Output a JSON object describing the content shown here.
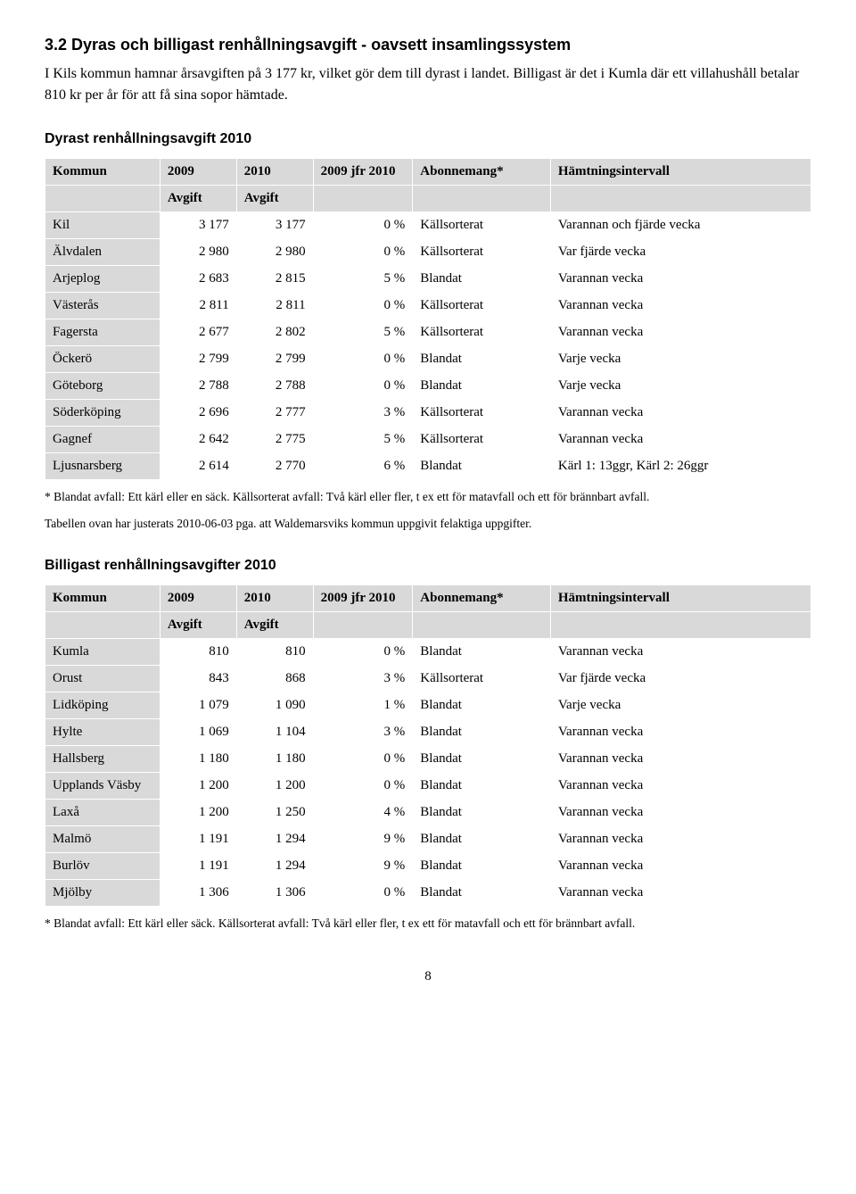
{
  "section": {
    "heading": "3.2 Dyras och billigast renhållningsavgift - oavsett insamlingssystem",
    "para1": "I Kils kommun hamnar årsavgiften på 3 177 kr, vilket gör dem till dyrast i landet. Billigast är det i Kumla där ett villahushåll betalar 810 kr per år för att få sina sopor hämtade."
  },
  "table1": {
    "title": "Dyrast renhållningsavgift 2010",
    "headers": {
      "c0": "Kommun",
      "c1": "2009",
      "c2": "2010",
      "c3": "2009 jfr 2010",
      "c4": "Abonnemang*",
      "c5": "Hämtningsintervall",
      "sub1": "Avgift",
      "sub2": "Avgift"
    },
    "rows": [
      {
        "k": "Kil",
        "a": "3 177",
        "b": "3 177",
        "p": "0 %",
        "ab": "Källsorterat",
        "h": "Varannan och fjärde vecka"
      },
      {
        "k": "Älvdalen",
        "a": "2 980",
        "b": "2 980",
        "p": "0 %",
        "ab": "Källsorterat",
        "h": "Var fjärde vecka"
      },
      {
        "k": "Arjeplog",
        "a": "2 683",
        "b": "2 815",
        "p": "5 %",
        "ab": "Blandat",
        "h": "Varannan vecka"
      },
      {
        "k": "Västerås",
        "a": "2 811",
        "b": "2 811",
        "p": "0 %",
        "ab": "Källsorterat",
        "h": "Varannan vecka"
      },
      {
        "k": "Fagersta",
        "a": "2 677",
        "b": "2 802",
        "p": "5 %",
        "ab": "Källsorterat",
        "h": "Varannan vecka"
      },
      {
        "k": "Öckerö",
        "a": "2 799",
        "b": "2 799",
        "p": "0 %",
        "ab": "Blandat",
        "h": "Varje vecka"
      },
      {
        "k": "Göteborg",
        "a": "2 788",
        "b": "2 788",
        "p": "0 %",
        "ab": "Blandat",
        "h": "Varje vecka"
      },
      {
        "k": "Söderköping",
        "a": "2 696",
        "b": "2 777",
        "p": "3 %",
        "ab": "Källsorterat",
        "h": "Varannan vecka"
      },
      {
        "k": "Gagnef",
        "a": "2 642",
        "b": "2 775",
        "p": "5 %",
        "ab": "Källsorterat",
        "h": "Varannan vecka"
      },
      {
        "k": "Ljusnarsberg",
        "a": "2 614",
        "b": "2 770",
        "p": "6 %",
        "ab": "Blandat",
        "h": "Kärl 1: 13ggr, Kärl 2: 26ggr"
      }
    ],
    "footnote1": "* Blandat avfall: Ett kärl eller en säck. Källsorterat avfall: Två kärl eller fler, t ex ett för matavfall och ett för brännbart avfall.",
    "footnote2": "Tabellen ovan har justerats 2010-06-03 pga. att Waldemarsviks kommun uppgivit felaktiga uppgifter."
  },
  "table2": {
    "title": "Billigast renhållningsavgifter 2010",
    "headers": {
      "c0": "Kommun",
      "c1": "2009",
      "c2": "2010",
      "c3": "2009 jfr 2010",
      "c4": "Abonnemang*",
      "c5": "Hämtningsintervall",
      "sub1": "Avgift",
      "sub2": "Avgift"
    },
    "rows": [
      {
        "k": "Kumla",
        "a": "810",
        "b": "810",
        "p": "0 %",
        "ab": "Blandat",
        "h": "Varannan vecka"
      },
      {
        "k": "Orust",
        "a": "843",
        "b": "868",
        "p": "3 %",
        "ab": "Källsorterat",
        "h": "Var fjärde vecka"
      },
      {
        "k": "Lidköping",
        "a": "1 079",
        "b": "1 090",
        "p": "1 %",
        "ab": "Blandat",
        "h": "Varje vecka"
      },
      {
        "k": "Hylte",
        "a": "1 069",
        "b": "1 104",
        "p": "3 %",
        "ab": "Blandat",
        "h": "Varannan vecka"
      },
      {
        "k": "Hallsberg",
        "a": "1 180",
        "b": "1 180",
        "p": "0 %",
        "ab": "Blandat",
        "h": "Varannan vecka"
      },
      {
        "k": "Upplands Väsby",
        "a": "1 200",
        "b": "1 200",
        "p": "0 %",
        "ab": "Blandat",
        "h": "Varannan vecka"
      },
      {
        "k": "Laxå",
        "a": "1 200",
        "b": "1 250",
        "p": "4 %",
        "ab": "Blandat",
        "h": "Varannan vecka"
      },
      {
        "k": "Malmö",
        "a": "1 191",
        "b": "1 294",
        "p": "9 %",
        "ab": "Blandat",
        "h": "Varannan vecka"
      },
      {
        "k": "Burlöv",
        "a": "1 191",
        "b": "1 294",
        "p": "9 %",
        "ab": "Blandat",
        "h": "Varannan vecka"
      },
      {
        "k": "Mjölby",
        "a": "1 306",
        "b": "1 306",
        "p": "0 %",
        "ab": "Blandat",
        "h": "Varannan vecka"
      }
    ],
    "footnote1": "* Blandat avfall: Ett kärl eller säck. Källsorterat avfall: Två kärl eller fler, t ex ett för matavfall och ett för brännbart avfall."
  },
  "pageNumber": "8",
  "style": {
    "cell_bg": "#d9d9d9",
    "border_color": "#ffffff",
    "body_font": "Times New Roman",
    "heading_font": "Arial"
  }
}
